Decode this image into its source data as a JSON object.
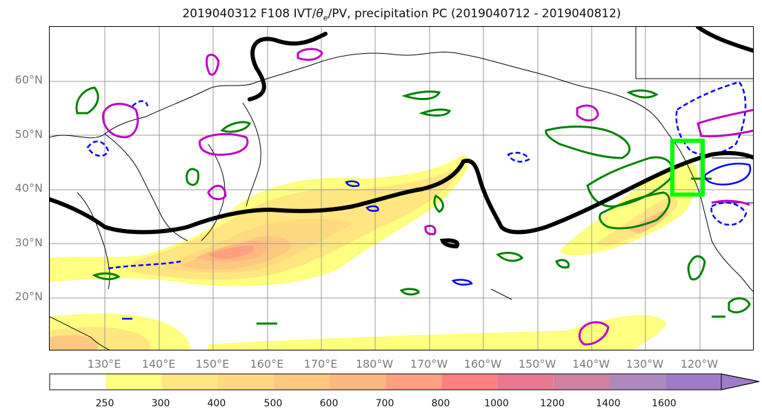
{
  "title": {
    "prefix": "2019040312 F108 IVT/",
    "theta": "θ",
    "theta_sub": "e",
    "suffix": "/PV, precipitation PC (2019040712 - 2019040812)"
  },
  "map": {
    "lat_labels": [
      "60°N",
      "50°N",
      "40°N",
      "30°N",
      "20°N"
    ],
    "lon_labels": [
      "130°E",
      "140°E",
      "150°E",
      "160°E",
      "170°E",
      "180°W",
      "170°W",
      "160°W",
      "150°W",
      "140°W",
      "130°W",
      "120°W"
    ],
    "highlight_box_color": "#00ff00",
    "contour_colors": {
      "positive_pv": "#008000",
      "negative_pv": "#0000ff",
      "theta_e": "#c000c0",
      "jet_contour": "#000000"
    }
  },
  "colorbar": {
    "ticks": [
      "250",
      "300",
      "400",
      "500",
      "600",
      "700",
      "800",
      "1000",
      "1200",
      "1400",
      "1600"
    ],
    "colors": [
      "#ffffff",
      "#ffff80",
      "#ffe680",
      "#ffd980",
      "#ffc880",
      "#ffb880",
      "#ffa080",
      "#ff8080",
      "#e87890",
      "#d080a0",
      "#b088c0",
      "#a07cc8"
    ]
  }
}
